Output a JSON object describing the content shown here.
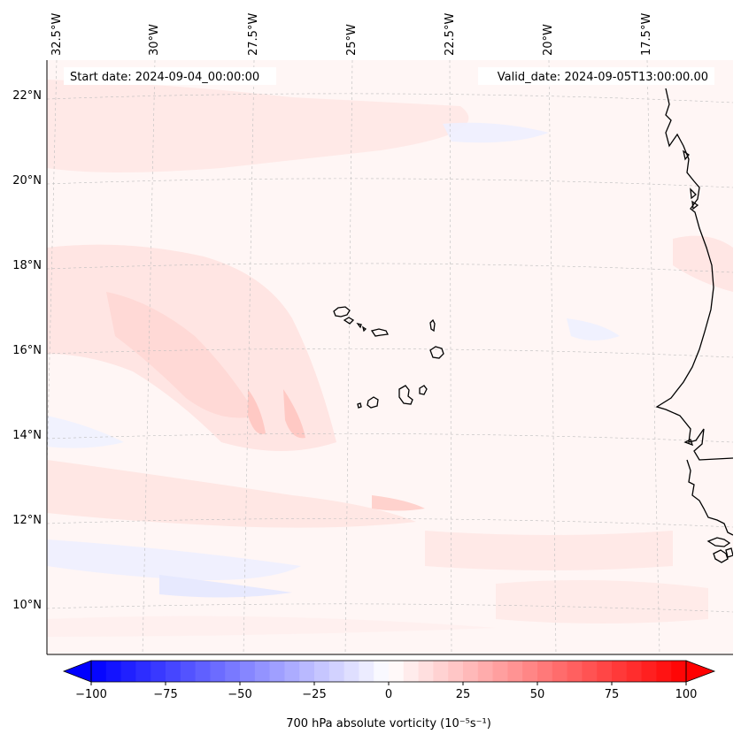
{
  "map": {
    "start_label": "Start date: 2024-09-04_00:00:00",
    "valid_label": "Valid_date: 2024-09-05T13:00:00.00",
    "lon_labels": [
      "32.5°W",
      "30°W",
      "27.5°W",
      "25°W",
      "22.5°W",
      "20°W",
      "17.5°W"
    ],
    "lat_labels": [
      "22°N",
      "20°N",
      "18°N",
      "16°N",
      "14°N",
      "12°N",
      "10°N"
    ]
  },
  "colorbar": {
    "label": "700 hPa absolute vorticity (10⁻⁵s⁻¹)",
    "ticks": [
      "−100",
      "−75",
      "−50",
      "−25",
      "0",
      "25",
      "50",
      "75",
      "100"
    ],
    "min": -100,
    "max": 100,
    "levels": 41,
    "low_color": "#0000ff",
    "mid_color": "#ffffff",
    "high_color": "#ff0000"
  },
  "colors": {
    "ocean_tint": "#fff6f5",
    "coast": "#000000",
    "grid": "#bdbdbd"
  }
}
